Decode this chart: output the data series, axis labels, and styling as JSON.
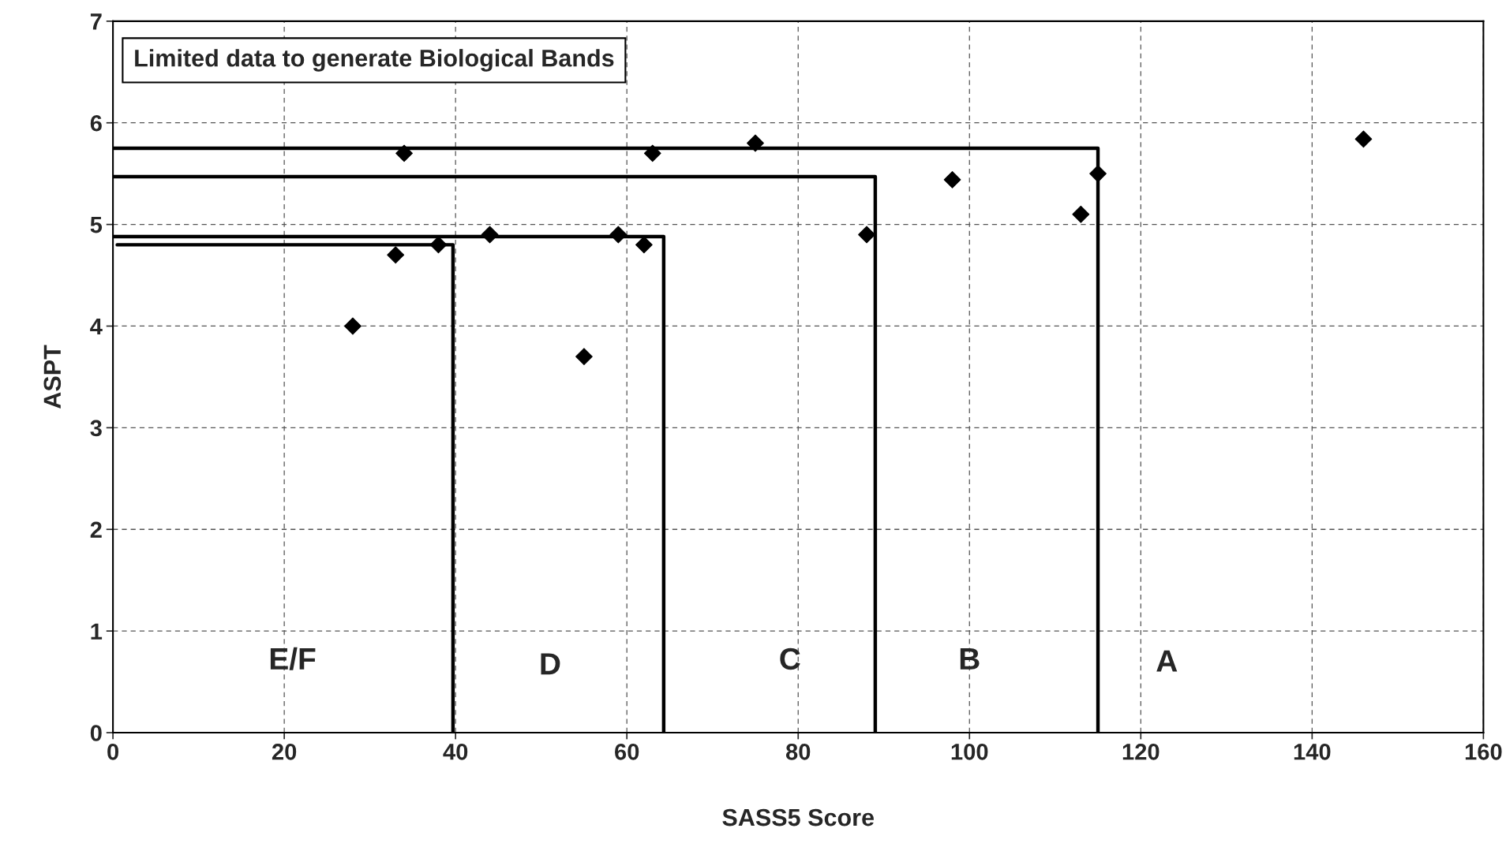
{
  "chart_data": {
    "type": "scatter",
    "xlabel": "SASS5 Score",
    "ylabel": "ASPT",
    "xlim": [
      0,
      160
    ],
    "xticks": [
      0,
      20,
      40,
      60,
      80,
      100,
      120,
      140,
      160
    ],
    "ylim": [
      0,
      7
    ],
    "yticks": [
      0,
      1,
      2,
      3,
      4,
      5,
      6,
      7
    ],
    "grid": true,
    "marker": "diamond",
    "series": [
      {
        "color": "#000000",
        "x": [
          28,
          33,
          34,
          38,
          44,
          55,
          59,
          62,
          63,
          75,
          88,
          98,
          113,
          115,
          146
        ],
        "values": [
          4.0,
          4.7,
          5.7,
          4.8,
          4.9,
          3.7,
          4.9,
          4.8,
          5.7,
          5.8,
          4.9,
          5.44,
          5.1,
          5.5,
          5.84
        ]
      },
      {
        "type": "line",
        "marker": "none",
        "color": "#000000",
        "x": [
          0.5,
          39.7,
          39.7
        ],
        "values": [
          4.8,
          4.8,
          0
        ]
      },
      {
        "type": "line",
        "marker": "none",
        "color": "#000000",
        "x": [
          0,
          64.3,
          64.3
        ],
        "values": [
          4.88,
          4.88,
          0
        ]
      },
      {
        "type": "line",
        "marker": "none",
        "color": "#000000",
        "x": [
          0,
          89,
          89
        ],
        "values": [
          5.47,
          5.47,
          0
        ]
      },
      {
        "type": "line",
        "marker": "none",
        "color": "#000000",
        "x": [
          0,
          115,
          115
        ],
        "values": [
          5.75,
          5.75,
          0
        ]
      }
    ],
    "annotations": [
      "Limited data to generate Biological Bands",
      "E/F",
      "D",
      "C",
      "B",
      "A"
    ]
  }
}
